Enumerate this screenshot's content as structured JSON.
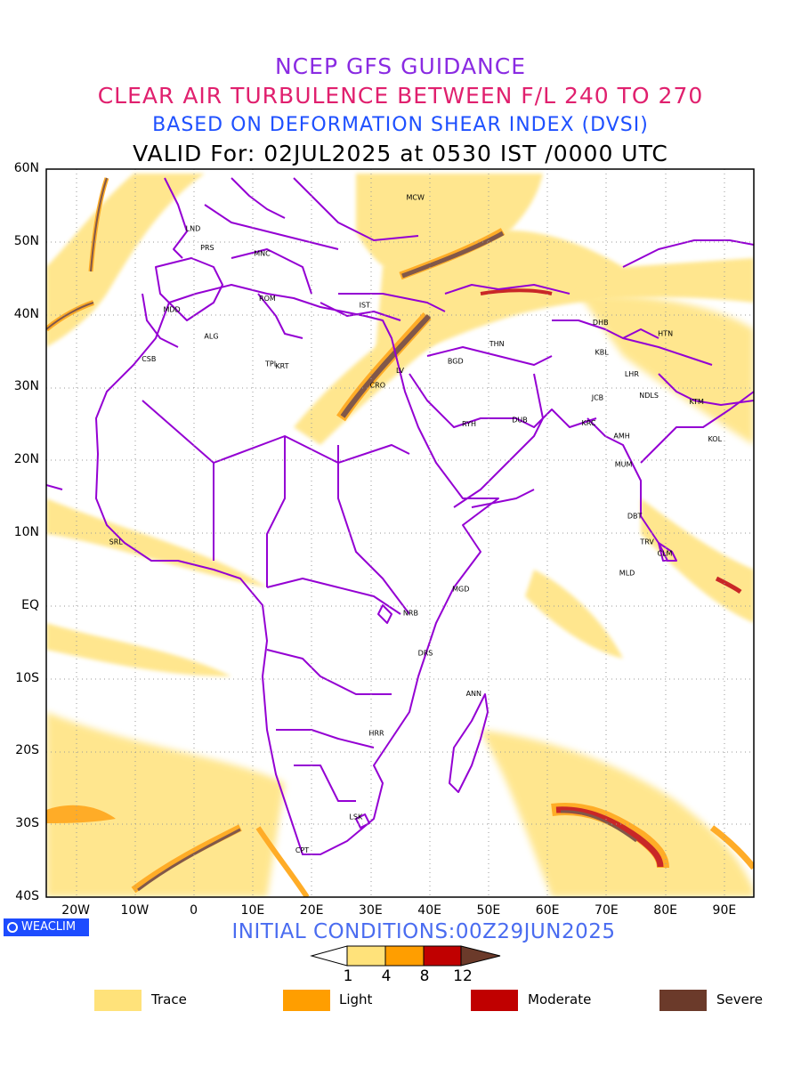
{
  "titles": {
    "line1": "NCEP GFS GUIDANCE",
    "line2": "CLEAR AIR TURBULENCE BETWEEN F/L 240 TO 270",
    "line3": "BASED ON DEFORMATION SHEAR INDEX (DVSI)",
    "line4": "VALID For: 02JUL2025 at 0530 IST /0000 UTC"
  },
  "axes": {
    "lat_labels": [
      "60N",
      "50N",
      "40N",
      "30N",
      "20N",
      "10N",
      "EQ",
      "10S",
      "20S",
      "30S",
      "40S"
    ],
    "lon_labels": [
      "20W",
      "10W",
      "0",
      "10E",
      "20E",
      "30E",
      "40E",
      "50E",
      "60E",
      "70E",
      "80E",
      "90E"
    ],
    "lat_range": [
      -40,
      60
    ],
    "lon_range": [
      -25,
      95
    ],
    "grid": "dotted"
  },
  "cities": [
    {
      "code": "MCW",
      "lon": 37.6,
      "lat": 55.8
    },
    {
      "code": "LND",
      "lon": -0.1,
      "lat": 51.5
    },
    {
      "code": "PRS",
      "lon": 2.3,
      "lat": 48.9
    },
    {
      "code": "MNC",
      "lon": 11.6,
      "lat": 48.1
    },
    {
      "code": "ROM",
      "lon": 12.5,
      "lat": 41.9
    },
    {
      "code": "MDD",
      "lon": -3.7,
      "lat": 40.4
    },
    {
      "code": "IST",
      "lon": 29.0,
      "lat": 41.0
    },
    {
      "code": "DHB",
      "lon": 69.0,
      "lat": 38.6
    },
    {
      "code": "HTN",
      "lon": 80.0,
      "lat": 37.1
    },
    {
      "code": "ALG",
      "lon": 3.0,
      "lat": 36.7
    },
    {
      "code": "THN",
      "lon": 51.4,
      "lat": 35.7
    },
    {
      "code": "CSB",
      "lon": -7.6,
      "lat": 33.6
    },
    {
      "code": "KBL",
      "lon": 69.2,
      "lat": 34.5
    },
    {
      "code": "TPL",
      "lon": 13.2,
      "lat": 32.9
    },
    {
      "code": "KRT",
      "lon": 15.0,
      "lat": 32.6
    },
    {
      "code": "BGD",
      "lon": 44.4,
      "lat": 33.3
    },
    {
      "code": "LHR",
      "lon": 74.3,
      "lat": 31.5
    },
    {
      "code": "LV",
      "lon": 35.0,
      "lat": 32.0
    },
    {
      "code": "CRO",
      "lon": 31.2,
      "lat": 30.0
    },
    {
      "code": "JCB",
      "lon": 68.5,
      "lat": 28.3
    },
    {
      "code": "NDLS",
      "lon": 77.2,
      "lat": 28.6
    },
    {
      "code": "KTM",
      "lon": 85.3,
      "lat": 27.7
    },
    {
      "code": "RYH",
      "lon": 46.7,
      "lat": 24.7
    },
    {
      "code": "DUB",
      "lon": 55.3,
      "lat": 25.2
    },
    {
      "code": "KRC",
      "lon": 67.0,
      "lat": 24.8
    },
    {
      "code": "AMH",
      "lon": 72.6,
      "lat": 23.0
    },
    {
      "code": "KOL",
      "lon": 88.4,
      "lat": 22.6
    },
    {
      "code": "MUM",
      "lon": 72.9,
      "lat": 19.1
    },
    {
      "code": "DBT",
      "lon": 74.8,
      "lat": 12.0
    },
    {
      "code": "SRL",
      "lon": -13.2,
      "lat": 8.5
    },
    {
      "code": "TRV",
      "lon": 76.9,
      "lat": 8.5
    },
    {
      "code": "CLM",
      "lon": 79.9,
      "lat": 6.9
    },
    {
      "code": "MLD",
      "lon": 73.5,
      "lat": 4.2
    },
    {
      "code": "MGD",
      "lon": 45.3,
      "lat": 2.0
    },
    {
      "code": "NRB",
      "lon": 36.8,
      "lat": -1.3
    },
    {
      "code": "DRS",
      "lon": 39.3,
      "lat": -6.8
    },
    {
      "code": "ANN",
      "lon": 47.5,
      "lat": -12.4
    },
    {
      "code": "HRR",
      "lon": 31.0,
      "lat": -17.8
    },
    {
      "code": "LSK",
      "lon": 27.5,
      "lat": -29.3
    },
    {
      "code": "CPT",
      "lon": 18.4,
      "lat": -33.9
    }
  ],
  "footer": {
    "brand": "WEACLIM",
    "initial_conditions": "INITIAL CONDITIONS:00Z29JUN2025"
  },
  "colorbar": {
    "ticks": [
      "1",
      "4",
      "8",
      "12"
    ],
    "colors": [
      "#ffffff",
      "#ffe27a",
      "#ff9e00",
      "#c00000",
      "#6b3a2a"
    ]
  },
  "legend": [
    {
      "label": "Trace",
      "color": "#ffe27a"
    },
    {
      "label": "Light",
      "color": "#ff9e00"
    },
    {
      "label": "Moderate",
      "color": "#c00000"
    },
    {
      "label": "Severe",
      "color": "#6b3a2a"
    }
  ],
  "colors": {
    "boundaries": "#9400d3",
    "title1": "#8a2be2",
    "title2": "#e0206e",
    "title3": "#1e50ff"
  }
}
